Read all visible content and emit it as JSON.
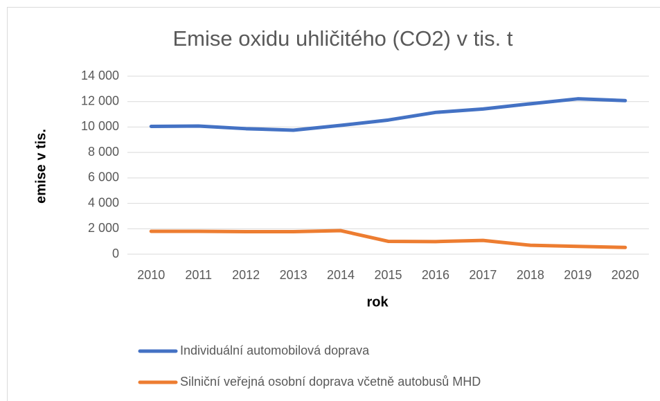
{
  "chart_data": {
    "type": "line",
    "title": "Emise oxidu uhličitého (CO2) v tis. t",
    "y_label": "emise v tis.",
    "x_label": "rok",
    "categories": [
      "2010",
      "2011",
      "2012",
      "2013",
      "2014",
      "2015",
      "2016",
      "2017",
      "2018",
      "2019",
      "2020"
    ],
    "series": [
      {
        "name": "Individuální automobilová doprava",
        "color": "#4472c4",
        "values": [
          10050,
          10080,
          9870,
          9750,
          10130,
          10550,
          11150,
          11420,
          11830,
          12220,
          12080
        ]
      },
      {
        "name": "Silniční veřejná osobní doprava včetně autobusů MHD",
        "color": "#ed7d31",
        "values": [
          1800,
          1800,
          1770,
          1770,
          1850,
          1010,
          990,
          1080,
          700,
          610,
          530
        ]
      }
    ],
    "ylim": [
      0,
      14000
    ],
    "yticks": [
      0,
      {
        "value": 2000,
        "label": "2 000"
      },
      {
        "value": 4000,
        "label": "4 000"
      },
      {
        "value": 6000,
        "label": "6 000"
      },
      {
        "value": 8000,
        "label": "8 000"
      },
      {
        "value": 10000,
        "label": "10 000"
      },
      {
        "value": 12000,
        "label": "12 000"
      },
      {
        "value": 14000,
        "label": "14 000"
      }
    ],
    "grid": true,
    "legend": "bottom"
  }
}
